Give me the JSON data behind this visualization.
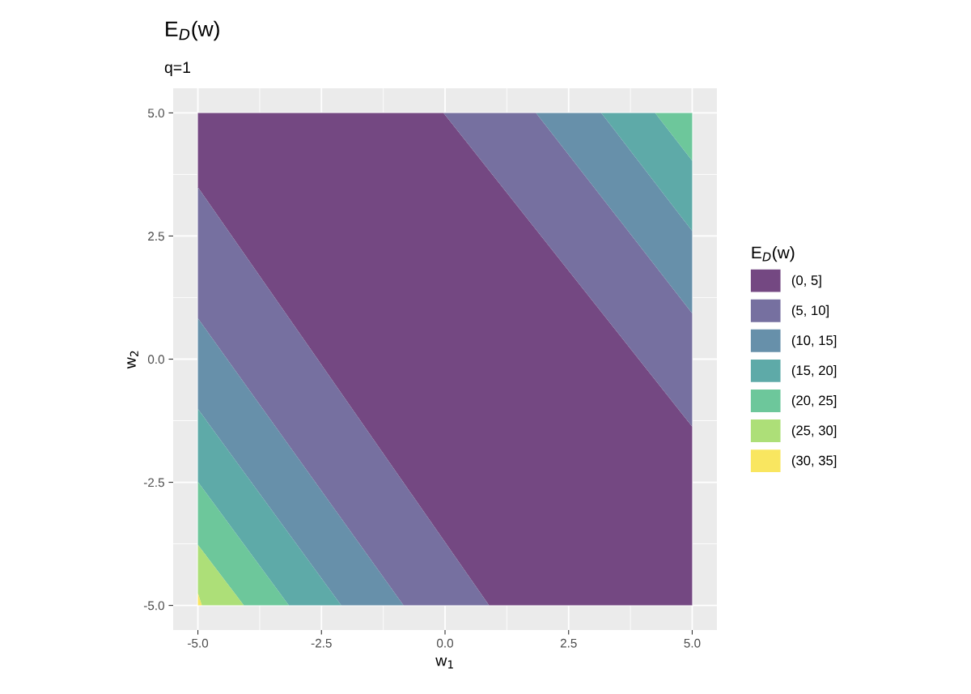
{
  "chart_data": {
    "type": "area",
    "title": "E$_{D}$(w)",
    "subtitle": "q=1",
    "xlabel": "w$_{1}$",
    "ylabel": "w$_{2}$",
    "legend_title": "E$_{D}$(w)",
    "legend": "right",
    "grid": true,
    "xlim": [
      -5.5,
      5.5
    ],
    "ylim": [
      -5.5,
      5.5
    ],
    "xticks": [
      {
        "value": -5,
        "label": "-5.0"
      },
      {
        "value": -2.5,
        "label": "-2.5"
      },
      {
        "value": 0,
        "label": "0.0"
      },
      {
        "value": 2.5,
        "label": "2.5"
      },
      {
        "value": 5,
        "label": "5.0"
      }
    ],
    "yticks": [
      {
        "value": -5,
        "label": "-5.0"
      },
      {
        "value": -2.5,
        "label": "-2.5"
      },
      {
        "value": 0,
        "label": "0.0"
      },
      {
        "value": 2.5,
        "label": "2.5"
      },
      {
        "value": 5,
        "label": "5.0"
      }
    ],
    "series": [
      {
        "name": "(0, 5]",
        "color": "#744882",
        "x": [
          -5,
          -0.03,
          5,
          5,
          0.89,
          -5
        ],
        "values": [
          5,
          5,
          -1.37,
          -5,
          -5,
          3.49
        ]
      },
      {
        "name": "(5, 10]",
        "color": "#7670a0",
        "x": [
          -5,
          0.89,
          -0.84,
          -5,
          null,
          -0.03,
          1.84,
          5,
          5
        ],
        "values": [
          3.49,
          -5,
          -5,
          0.83,
          null,
          5,
          5,
          0.93,
          -1.37
        ]
      },
      {
        "name": "(10, 15]",
        "color": "#6790aa",
        "x": [
          -5,
          -0.84,
          -2.1,
          -5,
          null,
          1.84,
          3.16,
          5,
          5
        ],
        "values": [
          0.83,
          -5,
          -5,
          -1.01,
          null,
          5,
          5,
          2.6,
          0.93
        ]
      },
      {
        "name": "(15, 20]",
        "color": "#5eaaa8",
        "x": [
          -5,
          -2.1,
          -3.16,
          -5,
          null,
          3.16,
          4.25,
          5,
          5
        ],
        "values": [
          -1.01,
          -5,
          -5,
          -2.49,
          null,
          5,
          5,
          4.03,
          2.6
        ]
      },
      {
        "name": "(20, 25]",
        "color": "#6dc79b",
        "x": [
          -5,
          -3.16,
          -4.07,
          -5,
          null,
          4.25,
          5,
          5
        ],
        "values": [
          -2.49,
          -5,
          -5,
          -3.77,
          null,
          5,
          5,
          4.03
        ]
      },
      {
        "name": "(25, 30]",
        "color": "#addf78",
        "x": [
          -5,
          -4.07,
          -4.92,
          -5
        ],
        "values": [
          -3.77,
          -5,
          -5,
          -4.75
        ]
      },
      {
        "name": "(30, 35]",
        "color": "#f9e660",
        "x": [
          -5,
          -4.92,
          -5
        ],
        "values": [
          -4.75,
          -5,
          -5
        ]
      }
    ]
  }
}
